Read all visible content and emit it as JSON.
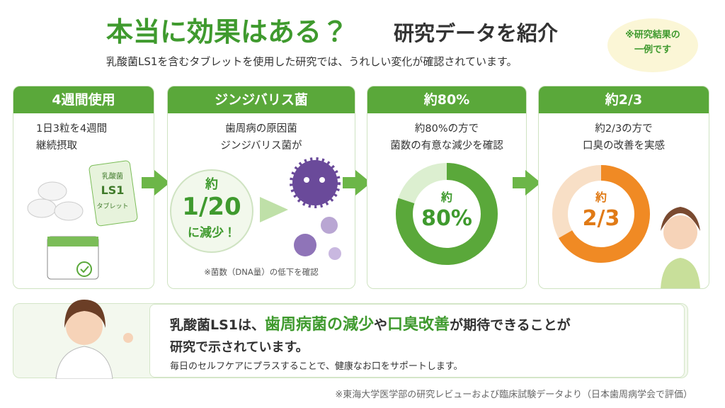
{
  "header": {
    "title_main": "本当に効果はある？",
    "title_sub": "研究データを紹介",
    "lead": "乳酸菌LS1を含むタブレットを使用した研究では、うれしい変化が確認されています。",
    "badge": [
      "※研究結果の",
      "一例です"
    ]
  },
  "cards": [
    {
      "heading": "4週間使用",
      "text": [
        "1日3粒を4週間",
        "継続摂取"
      ],
      "package": [
        "乳酸菌",
        "LS1",
        "タブレット"
      ]
    },
    {
      "heading": "ジンジバリス菌",
      "text": [
        "歯周病の原因菌",
        "ジンジバリス菌が"
      ],
      "circle": [
        "約",
        "1/20",
        "に減少！"
      ],
      "note": "※菌数（DNA量）の低下を確認"
    },
    {
      "heading": "約80%",
      "text": [
        "約80%の方で",
        "菌数の有意な減少を確認"
      ],
      "donut": {
        "prefix": "約",
        "value": 80,
        "value_label": "80%"
      }
    },
    {
      "heading": "約2/3",
      "text": [
        "約2/3の方で",
        "口臭の改善を実感"
      ],
      "donut": {
        "prefix": "約",
        "value": 66.7,
        "value_label": "2/3"
      }
    }
  ],
  "summary": {
    "line1": [
      "乳酸菌LS1は、",
      "歯周病菌の減少",
      "や",
      "口臭改善",
      "が期待できることが"
    ],
    "line2": "研究で示されています。",
    "line3": "毎日のセルフケアにプラスすることで、健康なお口をサポートします。"
  },
  "footer": "※東海大学医学部の研究レビューおよび臨床試験データより（日本歯周病学会で評価）"
}
